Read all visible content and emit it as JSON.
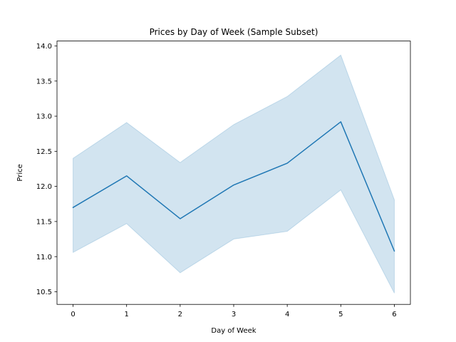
{
  "chart_data": {
    "type": "line",
    "title": "Prices by Day of Week (Sample Subset)",
    "xlabel": "Day of Week",
    "ylabel": "Price",
    "x": [
      0,
      1,
      2,
      3,
      4,
      5,
      6
    ],
    "series": [
      {
        "values": [
          11.7,
          12.15,
          11.54,
          12.02,
          12.33,
          12.92,
          11.08
        ],
        "ci_lower": [
          11.06,
          11.47,
          10.77,
          11.25,
          11.36,
          11.95,
          10.48
        ],
        "ci_upper": [
          12.4,
          12.91,
          12.34,
          12.88,
          13.28,
          13.87,
          11.81
        ],
        "color": "#1f77b4",
        "band_color": "#1f77b4"
      }
    ],
    "xlim": [
      -0.3,
      6.3
    ],
    "ylim": [
      10.32,
      14.07
    ],
    "xticks": [
      "0",
      "1",
      "2",
      "3",
      "4",
      "5",
      "6"
    ],
    "yticks": [
      "10.5",
      "11.0",
      "11.5",
      "12.0",
      "12.5",
      "13.0",
      "13.5",
      "14.0"
    ],
    "legend": "none",
    "grid": false
  }
}
